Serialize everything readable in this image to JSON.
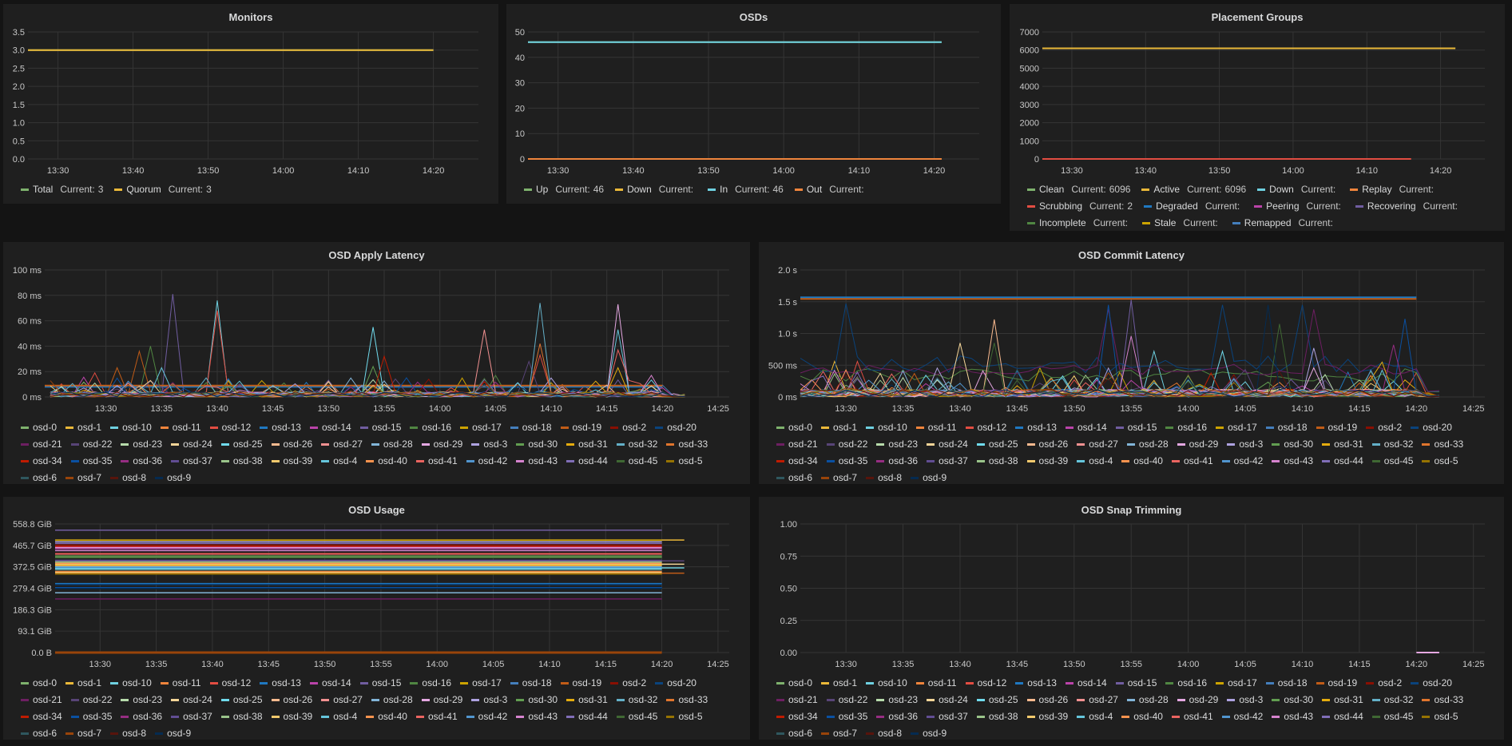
{
  "current_label": "Current:",
  "osd_legend": [
    {
      "name": "osd-0",
      "color": "#7EB26D"
    },
    {
      "name": "osd-1",
      "color": "#EAB839"
    },
    {
      "name": "osd-10",
      "color": "#6ED0E0"
    },
    {
      "name": "osd-11",
      "color": "#EF843C"
    },
    {
      "name": "osd-12",
      "color": "#E24D42"
    },
    {
      "name": "osd-13",
      "color": "#1F78C1"
    },
    {
      "name": "osd-14",
      "color": "#BA43A9"
    },
    {
      "name": "osd-15",
      "color": "#705DA0"
    },
    {
      "name": "osd-16",
      "color": "#508642"
    },
    {
      "name": "osd-17",
      "color": "#CCA300"
    },
    {
      "name": "osd-18",
      "color": "#447EBC"
    },
    {
      "name": "osd-19",
      "color": "#C15C17"
    },
    {
      "name": "osd-2",
      "color": "#890F02"
    },
    {
      "name": "osd-20",
      "color": "#0A437C"
    },
    {
      "name": "osd-21",
      "color": "#6D1F62"
    },
    {
      "name": "osd-22",
      "color": "#584477"
    },
    {
      "name": "osd-23",
      "color": "#B7DBAB"
    },
    {
      "name": "osd-24",
      "color": "#F4D598"
    },
    {
      "name": "osd-25",
      "color": "#70DBED"
    },
    {
      "name": "osd-26",
      "color": "#F9BA8F"
    },
    {
      "name": "osd-27",
      "color": "#F29191"
    },
    {
      "name": "osd-28",
      "color": "#82B5D8"
    },
    {
      "name": "osd-29",
      "color": "#E5A8E2"
    },
    {
      "name": "osd-3",
      "color": "#AEA2E0"
    },
    {
      "name": "osd-30",
      "color": "#629E51"
    },
    {
      "name": "osd-31",
      "color": "#E5AC0E"
    },
    {
      "name": "osd-32",
      "color": "#64B0C8"
    },
    {
      "name": "osd-33",
      "color": "#E0752D"
    },
    {
      "name": "osd-34",
      "color": "#BF1B00"
    },
    {
      "name": "osd-35",
      "color": "#0A50A1"
    },
    {
      "name": "osd-36",
      "color": "#962D82"
    },
    {
      "name": "osd-37",
      "color": "#614D93"
    },
    {
      "name": "osd-38",
      "color": "#9AC48A"
    },
    {
      "name": "osd-39",
      "color": "#F2C96D"
    },
    {
      "name": "osd-4",
      "color": "#65C5DB"
    },
    {
      "name": "osd-40",
      "color": "#F9934E"
    },
    {
      "name": "osd-41",
      "color": "#EA6460"
    },
    {
      "name": "osd-42",
      "color": "#5195CE"
    },
    {
      "name": "osd-43",
      "color": "#D683CE"
    },
    {
      "name": "osd-44",
      "color": "#806EB7"
    },
    {
      "name": "osd-45",
      "color": "#3F6833"
    },
    {
      "name": "osd-5",
      "color": "#967302"
    },
    {
      "name": "osd-6",
      "color": "#2F575E"
    },
    {
      "name": "osd-7",
      "color": "#99440A"
    },
    {
      "name": "osd-8",
      "color": "#58140C"
    },
    {
      "name": "osd-9",
      "color": "#052B51"
    }
  ],
  "chart_data": [
    {
      "id": "monitors",
      "type": "line",
      "title": "Monitors",
      "xlim": [
        "13:26",
        "14:26"
      ],
      "xticks": [
        "13:30",
        "13:40",
        "13:50",
        "14:00",
        "14:10",
        "14:20"
      ],
      "ylim": [
        0,
        3.5
      ],
      "yticks": [
        "0.0",
        "0.5",
        "1.0",
        "1.5",
        "2.0",
        "2.5",
        "3.0",
        "3.5"
      ],
      "grid": true,
      "legend": "bottom",
      "series": [
        {
          "name": "Total",
          "color": "#7EB26D",
          "current": "3",
          "x": [
            "13:26",
            "14:20"
          ],
          "y": [
            3,
            3
          ]
        },
        {
          "name": "Quorum",
          "color": "#EAB839",
          "current": "3",
          "x": [
            "13:26",
            "14:20"
          ],
          "y": [
            3,
            3
          ]
        }
      ]
    },
    {
      "id": "osds",
      "type": "line",
      "title": "OSDs",
      "xlim": [
        "13:26",
        "14:26"
      ],
      "xticks": [
        "13:30",
        "13:40",
        "13:50",
        "14:00",
        "14:10",
        "14:20"
      ],
      "ylim": [
        0,
        50
      ],
      "yticks": [
        "0",
        "10",
        "20",
        "30",
        "40",
        "50"
      ],
      "grid": true,
      "legend": "bottom",
      "series": [
        {
          "name": "Up",
          "color": "#7EB26D",
          "current": "46",
          "x": [
            "13:26",
            "14:21"
          ],
          "y": [
            46,
            46
          ]
        },
        {
          "name": "Down",
          "color": "#EAB839",
          "current": "",
          "x": [
            "13:26",
            "14:21"
          ],
          "y": [
            0,
            0
          ]
        },
        {
          "name": "In",
          "color": "#6ED0E0",
          "current": "46",
          "x": [
            "13:26",
            "14:21"
          ],
          "y": [
            46,
            46
          ]
        },
        {
          "name": "Out",
          "color": "#EF843C",
          "current": "",
          "x": [
            "13:26",
            "14:21"
          ],
          "y": [
            0,
            0
          ]
        }
      ]
    },
    {
      "id": "pgs",
      "type": "line",
      "title": "Placement Groups",
      "xlim": [
        "13:26",
        "14:26"
      ],
      "xticks": [
        "13:30",
        "13:40",
        "13:50",
        "14:00",
        "14:10",
        "14:20"
      ],
      "ylim": [
        0,
        7000
      ],
      "yticks": [
        "0",
        "1000",
        "2000",
        "3000",
        "4000",
        "5000",
        "6000",
        "7000"
      ],
      "grid": true,
      "legend": "bottom",
      "series": [
        {
          "name": "Clean",
          "color": "#7EB26D",
          "current": "6096",
          "x": [
            "13:26",
            "14:22"
          ],
          "y": [
            6096,
            6096
          ]
        },
        {
          "name": "Active",
          "color": "#EAB839",
          "current": "6096",
          "x": [
            "13:26",
            "14:22"
          ],
          "y": [
            6096,
            6096
          ]
        },
        {
          "name": "Down",
          "color": "#6ED0E0",
          "current": ""
        },
        {
          "name": "Replay",
          "color": "#EF843C",
          "current": ""
        },
        {
          "name": "Scrubbing",
          "color": "#E24D42",
          "current": "2",
          "x": [
            "13:26",
            "14:16"
          ],
          "y": [
            2,
            2
          ]
        },
        {
          "name": "Degraded",
          "color": "#1F78C1",
          "current": ""
        },
        {
          "name": "Peering",
          "color": "#BA43A9",
          "current": ""
        },
        {
          "name": "Recovering",
          "color": "#705DA0",
          "current": ""
        },
        {
          "name": "Incomplete",
          "color": "#508642",
          "current": ""
        },
        {
          "name": "Stale",
          "color": "#CCA300",
          "current": ""
        },
        {
          "name": "Remapped",
          "color": "#447EBC",
          "current": ""
        }
      ]
    },
    {
      "id": "apply",
      "type": "line",
      "title": "OSD Apply Latency",
      "xlim": [
        "13:24.5",
        "14:26"
      ],
      "xticks": [
        "13:30",
        "13:35",
        "13:40",
        "13:45",
        "13:50",
        "13:55",
        "14:00",
        "14:05",
        "14:10",
        "14:15",
        "14:20",
        "14:25"
      ],
      "ylim": [
        0,
        100
      ],
      "yticks": [
        "0 ms",
        "20 ms",
        "40 ms",
        "60 ms",
        "80 ms",
        "100 ms"
      ],
      "grid": true,
      "legend": "bottom",
      "unit": "ms",
      "series_end": "14:22",
      "baseline_max": 4,
      "flat": [
        {
          "series": "osd-19",
          "value": 9,
          "end": "14:20"
        },
        {
          "series": "osd-13",
          "value": 8,
          "end": "14:20"
        }
      ],
      "peaks": [
        {
          "series": "osd-15",
          "x": "13:36",
          "y": 81
        },
        {
          "series": "osd-10",
          "x": "13:40",
          "y": 76
        },
        {
          "series": "osd-12",
          "x": "13:40",
          "y": 68
        },
        {
          "series": "osd-19",
          "x": "13:31",
          "y": 23
        },
        {
          "series": "osd-19",
          "x": "13:33",
          "y": 36
        },
        {
          "series": "osd-16",
          "x": "13:34",
          "y": 40
        },
        {
          "series": "osd-12",
          "x": "13:29",
          "y": 19
        },
        {
          "series": "osd-4",
          "x": "13:35",
          "y": 23
        },
        {
          "series": "osd-24",
          "x": "13:34",
          "y": 13
        },
        {
          "series": "osd-1",
          "x": "13:41",
          "y": 13
        },
        {
          "series": "osd-25",
          "x": "13:54",
          "y": 55
        },
        {
          "series": "osd-30",
          "x": "13:54",
          "y": 24
        },
        {
          "series": "osd-34",
          "x": "13:55",
          "y": 32
        },
        {
          "series": "osd-28",
          "x": "13:52",
          "y": 15
        },
        {
          "series": "osd-2",
          "x": "13:59",
          "y": 14
        },
        {
          "series": "osd-17",
          "x": "14:02",
          "y": 15
        },
        {
          "series": "osd-27",
          "x": "14:04",
          "y": 53
        },
        {
          "series": "osd-16",
          "x": "14:05",
          "y": 17
        },
        {
          "series": "osd-22",
          "x": "14:08",
          "y": 28
        },
        {
          "series": "osd-32",
          "x": "14:09",
          "y": 74
        },
        {
          "series": "osd-33",
          "x": "14:09",
          "y": 42
        },
        {
          "series": "osd-12",
          "x": "14:09",
          "y": 33
        },
        {
          "series": "osd-3",
          "x": "14:10",
          "y": 15
        },
        {
          "series": "osd-29",
          "x": "14:16",
          "y": 73
        },
        {
          "series": "osd-4",
          "x": "14:16",
          "y": 53
        },
        {
          "series": "osd-41",
          "x": "14:16",
          "y": 37
        },
        {
          "series": "osd-31",
          "x": "14:16",
          "y": 23
        },
        {
          "series": "osd-43",
          "x": "14:19",
          "y": 17
        }
      ]
    },
    {
      "id": "commit",
      "type": "line",
      "title": "OSD Commit Latency",
      "xlim": [
        "13:26",
        "14:26"
      ],
      "xticks": [
        "13:30",
        "13:35",
        "13:40",
        "13:45",
        "13:50",
        "13:55",
        "14:00",
        "14:05",
        "14:10",
        "14:15",
        "14:20",
        "14:25"
      ],
      "ylim": [
        0,
        2000
      ],
      "yticks": [
        "0 ms",
        "500 ms",
        "1.0 s",
        "1.5 s",
        "2.0 s"
      ],
      "grid": true,
      "legend": "bottom",
      "unit": "ms",
      "series_end": "14:22",
      "baseline_max": 120,
      "flat": [
        {
          "series": "osd-13",
          "value": 1570,
          "end": "14:20"
        },
        {
          "series": "osd-19",
          "value": 1545,
          "end": "14:20"
        }
      ],
      "wander": [
        {
          "series": "osd-20",
          "min": 380,
          "max": 650
        },
        {
          "series": "osd-21",
          "min": 350,
          "max": 520
        },
        {
          "series": "osd-16",
          "min": 250,
          "max": 450
        }
      ],
      "peaks": [
        {
          "series": "osd-20",
          "x": "13:30",
          "y": 1470
        },
        {
          "series": "osd-26",
          "x": "13:43",
          "y": 1220
        },
        {
          "series": "osd-24",
          "x": "13:40",
          "y": 850
        },
        {
          "series": "osd-45",
          "x": "13:43",
          "y": 850
        },
        {
          "series": "osd-35",
          "x": "13:53",
          "y": 1450
        },
        {
          "series": "osd-21",
          "x": "13:53",
          "y": 1380
        },
        {
          "series": "osd-15",
          "x": "13:55",
          "y": 1530
        },
        {
          "series": "osd-43",
          "x": "13:55",
          "y": 960
        },
        {
          "series": "osd-10",
          "x": "13:57",
          "y": 720
        },
        {
          "series": "osd-20",
          "x": "14:03",
          "y": 1450
        },
        {
          "series": "osd-25",
          "x": "14:03",
          "y": 720
        },
        {
          "series": "osd-9",
          "x": "14:07",
          "y": 1450
        },
        {
          "series": "osd-45",
          "x": "14:08",
          "y": 1150
        },
        {
          "series": "osd-20",
          "x": "14:10",
          "y": 1450
        },
        {
          "series": "osd-21",
          "x": "14:11",
          "y": 1380
        },
        {
          "series": "osd-3",
          "x": "14:11",
          "y": 770
        },
        {
          "series": "osd-31",
          "x": "14:17",
          "y": 550
        },
        {
          "series": "osd-36",
          "x": "14:18",
          "y": 820
        },
        {
          "series": "osd-35",
          "x": "14:19",
          "y": 1230
        },
        {
          "series": "osd-1",
          "x": "13:29",
          "y": 560
        },
        {
          "series": "osd-12",
          "x": "13:31",
          "y": 560
        }
      ]
    },
    {
      "id": "usage",
      "type": "line",
      "title": "OSD Usage",
      "xlim": [
        "13:26",
        "14:26"
      ],
      "xticks": [
        "13:30",
        "13:35",
        "13:40",
        "13:45",
        "13:50",
        "13:55",
        "14:00",
        "14:05",
        "14:10",
        "14:15",
        "14:20",
        "14:25"
      ],
      "ylim": [
        0,
        558.8
      ],
      "yticks": [
        "0.0 B",
        "93.1 GiB",
        "186.3 GiB",
        "279.4 GiB",
        "372.5 GiB",
        "465.7 GiB",
        "558.8 GiB"
      ],
      "grid": true,
      "legend": "bottom",
      "unit": "GiB",
      "series_end": "14:20",
      "extended_end": "14:22",
      "values": {
        "osd-0": 415,
        "osd-1": 489,
        "osd-10": 368,
        "osd-11": 352,
        "osd-12": 430,
        "osd-13": 300,
        "osd-14": 458,
        "osd-15": 532,
        "osd-16": 420,
        "osd-17": 488,
        "osd-18": 375,
        "osd-19": 345,
        "osd-2": 466,
        "osd-20": 296,
        "osd-21": 233,
        "osd-22": 398,
        "osd-23": 386,
        "osd-24": 384,
        "osd-25": 362,
        "osd-26": 378,
        "osd-27": 471,
        "osd-28": 260,
        "osd-29": 455,
        "osd-3": 481,
        "osd-30": 391,
        "osd-31": 380,
        "osd-32": 372,
        "osd-33": 357,
        "osd-34": 462,
        "osd-35": 282,
        "osd-36": 451,
        "osd-37": 401,
        "osd-38": 394,
        "osd-39": 348,
        "osd-4": 366,
        "osd-40": 388,
        "osd-41": 428,
        "osd-42": 370,
        "osd-43": 443,
        "osd-44": 474,
        "osd-45": 412,
        "osd-5": 341,
        "osd-6": 358,
        "osd-7": 0,
        "osd-8": 469,
        "osd-9": 278
      },
      "extended": [
        "osd-22",
        "osd-24",
        "osd-1",
        "osd-10",
        "osd-19"
      ]
    },
    {
      "id": "snap",
      "type": "line",
      "title": "OSD Snap Trimming",
      "xlim": [
        "13:26",
        "14:26"
      ],
      "xticks": [
        "13:30",
        "13:35",
        "13:40",
        "13:45",
        "13:50",
        "13:55",
        "14:00",
        "14:05",
        "14:10",
        "14:15",
        "14:20",
        "14:25"
      ],
      "ylim": [
        0,
        1
      ],
      "yticks": [
        "0.00",
        "0.25",
        "0.50",
        "0.75",
        "1.00"
      ],
      "grid": true,
      "legend": "bottom",
      "series": [
        {
          "name": "osd-29",
          "x": [
            "14:20",
            "14:22"
          ],
          "y": [
            0,
            0
          ]
        }
      ]
    }
  ]
}
